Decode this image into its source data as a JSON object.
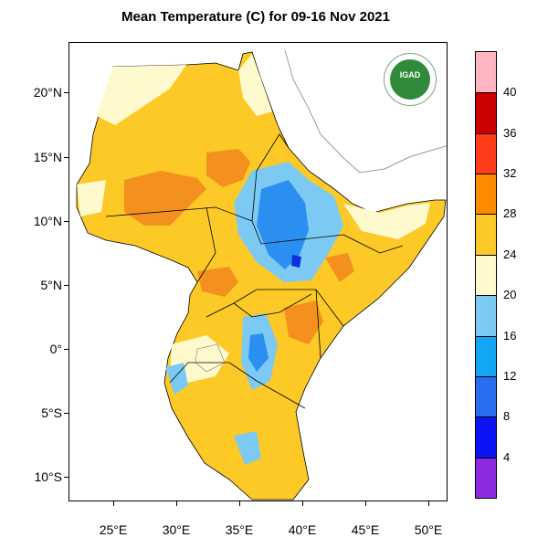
{
  "title": "Mean Temperature (C) for 09-16 Nov 2021",
  "logo": {
    "text": "IGAD"
  },
  "axes": {
    "lat_ticks": [
      {
        "value": 20,
        "label": "20°N"
      },
      {
        "value": 15,
        "label": "15°N"
      },
      {
        "value": 10,
        "label": "10°N"
      },
      {
        "value": 5,
        "label": "5°N"
      },
      {
        "value": 0,
        "label": "0°"
      },
      {
        "value": -5,
        "label": "5°S"
      },
      {
        "value": -10,
        "label": "10°S"
      }
    ],
    "lon_ticks": [
      {
        "value": 25,
        "label": "25°E"
      },
      {
        "value": 30,
        "label": "30°E"
      },
      {
        "value": 35,
        "label": "35°E"
      },
      {
        "value": 40,
        "label": "40°E"
      },
      {
        "value": 45,
        "label": "45°E"
      },
      {
        "value": 50,
        "label": "50°E"
      }
    ]
  },
  "colorbar": {
    "labels": [
      "4",
      "8",
      "12",
      "16",
      "20",
      "24",
      "28",
      "32",
      "36",
      "40"
    ],
    "colors": [
      "#8a2be2",
      "#0b14f5",
      "#2a6ef0",
      "#12a6f5",
      "#7ccaf3",
      "#fffacd",
      "#fcc926",
      "#fb8c00",
      "#ff3c1a",
      "#cc0000",
      "#ffb6c1"
    ]
  },
  "legend_colors": {
    "warm": "#fcc926",
    "hot": "#f4901e",
    "mild": "#fffacd",
    "cool": "#7ccaf3",
    "cold": "#2a8ff0",
    "coldest": "#1030e0"
  }
}
